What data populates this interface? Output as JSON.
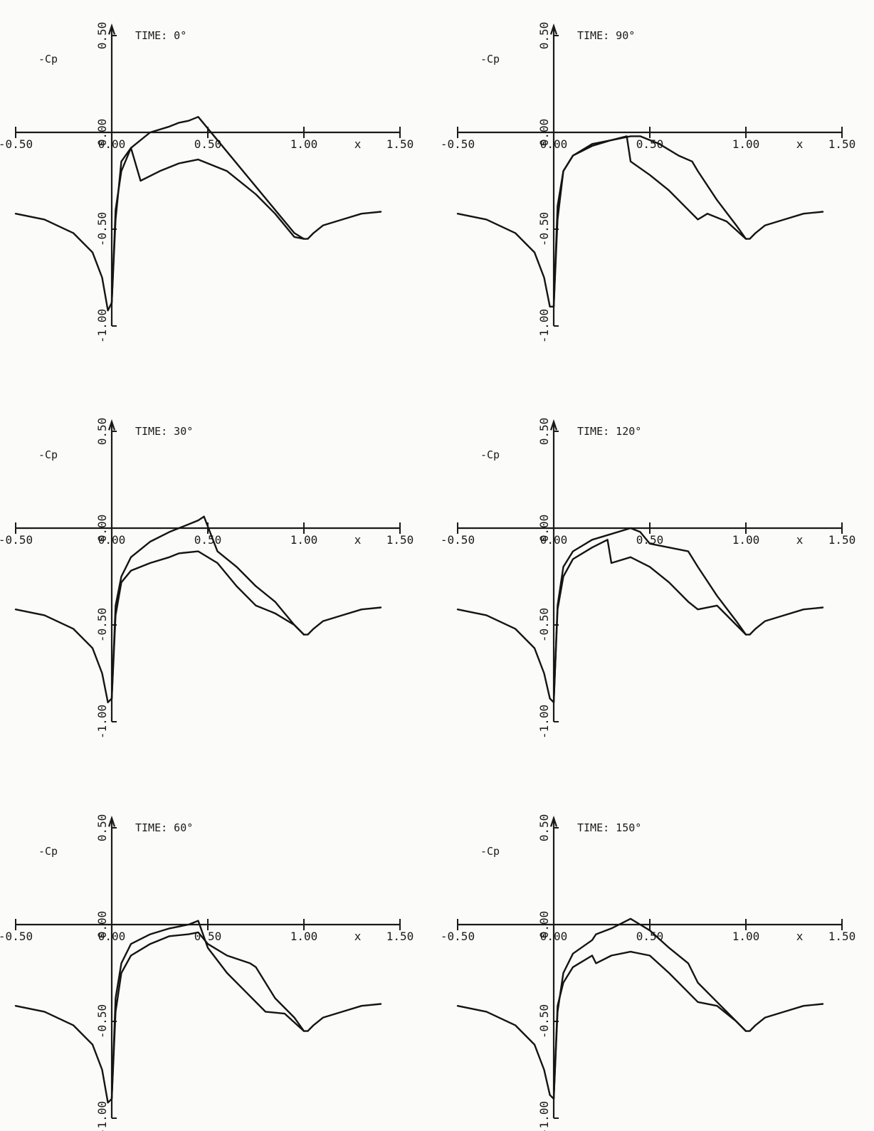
{
  "colors": {
    "background": "#fbfbf9",
    "ink": "#141414"
  },
  "chart_data": [
    {
      "type": "line",
      "title": "TIME: 0°",
      "ylabel": "-Cp",
      "xlabel": "x",
      "x_ticks": [
        "-0.50",
        "0.00",
        "0.50",
        "1.00",
        "1.50"
      ],
      "y_ticks": [
        "0.50",
        "0.00",
        "-0.50",
        "-1.00"
      ],
      "xlim": [
        -0.5,
        1.5
      ],
      "ylim": [
        -1.05,
        0.55
      ],
      "series": [
        {
          "x": [
            -0.5,
            -0.35,
            -0.2,
            -0.1,
            -0.05,
            -0.02,
            0.0,
            0.02,
            0.05,
            0.1,
            0.15,
            0.25,
            0.35,
            0.45,
            0.6,
            0.75,
            0.85,
            0.95,
            1.0,
            1.02,
            1.05,
            1.1,
            1.2,
            1.3,
            1.4
          ],
          "y": [
            -0.42,
            -0.45,
            -0.52,
            -0.62,
            -0.75,
            -0.92,
            -0.88,
            -0.45,
            -0.15,
            -0.08,
            -0.25,
            -0.2,
            -0.16,
            -0.14,
            -0.2,
            -0.32,
            -0.42,
            -0.54,
            -0.55,
            -0.55,
            -0.52,
            -0.48,
            -0.45,
            -0.42,
            -0.41
          ]
        },
        {
          "x": [
            0.0,
            0.02,
            0.05,
            0.1,
            0.2,
            0.3,
            0.35,
            0.4,
            0.45,
            0.6,
            0.75,
            0.85,
            0.95,
            1.0
          ],
          "y": [
            -0.88,
            -0.4,
            -0.2,
            -0.08,
            0.0,
            0.03,
            0.05,
            0.06,
            0.08,
            -0.1,
            -0.28,
            -0.4,
            -0.52,
            -0.55
          ]
        }
      ]
    },
    {
      "type": "line",
      "title": "TIME: 30°",
      "ylabel": "-Cp",
      "xlabel": "x",
      "x_ticks": [
        "-0.50",
        "0.00",
        "0.50",
        "1.00",
        "1.50"
      ],
      "y_ticks": [
        "0.50",
        "0.00",
        "-0.50",
        "-1.00"
      ],
      "xlim": [
        -0.5,
        1.5
      ],
      "ylim": [
        -1.05,
        0.55
      ],
      "series": [
        {
          "x": [
            -0.5,
            -0.35,
            -0.2,
            -0.1,
            -0.05,
            -0.02,
            0.0,
            0.02,
            0.05,
            0.1,
            0.2,
            0.3,
            0.35,
            0.45,
            0.55,
            0.65,
            0.75,
            0.85,
            0.95,
            1.0,
            1.02,
            1.05,
            1.1,
            1.2,
            1.3,
            1.4
          ],
          "y": [
            -0.42,
            -0.45,
            -0.52,
            -0.62,
            -0.75,
            -0.9,
            -0.88,
            -0.45,
            -0.28,
            -0.22,
            -0.18,
            -0.15,
            -0.13,
            -0.12,
            -0.18,
            -0.3,
            -0.4,
            -0.44,
            -0.5,
            -0.55,
            -0.55,
            -0.52,
            -0.48,
            -0.45,
            -0.42,
            -0.41
          ]
        },
        {
          "x": [
            0.0,
            0.02,
            0.05,
            0.1,
            0.2,
            0.3,
            0.4,
            0.45,
            0.48,
            0.55,
            0.65,
            0.75,
            0.85,
            0.95,
            1.0
          ],
          "y": [
            -0.88,
            -0.4,
            -0.25,
            -0.15,
            -0.07,
            -0.02,
            0.02,
            0.04,
            0.06,
            -0.12,
            -0.2,
            -0.3,
            -0.38,
            -0.5,
            -0.55
          ]
        }
      ]
    },
    {
      "type": "line",
      "title": "TIME: 60°",
      "ylabel": "-Cp",
      "xlabel": "x",
      "x_ticks": [
        "-0.50",
        "0.00",
        "0.50",
        "1.00",
        "1.50"
      ],
      "y_ticks": [
        "0.50",
        "0.00",
        "-0.50",
        "-1.00"
      ],
      "xlim": [
        -0.5,
        1.5
      ],
      "ylim": [
        -1.05,
        0.55
      ],
      "series": [
        {
          "x": [
            -0.5,
            -0.35,
            -0.2,
            -0.1,
            -0.05,
            -0.02,
            0.0,
            0.02,
            0.05,
            0.1,
            0.2,
            0.3,
            0.4,
            0.45,
            0.5,
            0.6,
            0.72,
            0.75,
            0.85,
            0.95,
            1.0,
            1.02,
            1.05,
            1.1,
            1.2,
            1.3,
            1.4
          ],
          "y": [
            -0.42,
            -0.45,
            -0.52,
            -0.62,
            -0.75,
            -0.92,
            -0.9,
            -0.45,
            -0.25,
            -0.16,
            -0.1,
            -0.06,
            -0.05,
            -0.04,
            -0.1,
            -0.16,
            -0.2,
            -0.22,
            -0.38,
            -0.48,
            -0.55,
            -0.55,
            -0.52,
            -0.48,
            -0.45,
            -0.42,
            -0.41
          ]
        },
        {
          "x": [
            0.0,
            0.02,
            0.05,
            0.1,
            0.2,
            0.3,
            0.4,
            0.45,
            0.5,
            0.6,
            0.7,
            0.8,
            0.9,
            1.0
          ],
          "y": [
            -0.9,
            -0.38,
            -0.2,
            -0.1,
            -0.05,
            -0.02,
            0.0,
            0.02,
            -0.12,
            -0.25,
            -0.35,
            -0.45,
            -0.46,
            -0.55
          ]
        }
      ]
    },
    {
      "type": "line",
      "title": "TIME: 90°",
      "ylabel": "-Cp",
      "xlabel": "x",
      "x_ticks": [
        "-0.50",
        "0.00",
        "0.50",
        "1.00",
        "1.50"
      ],
      "y_ticks": [
        "0.50",
        "0.00",
        "-0.50",
        "-1.00"
      ],
      "xlim": [
        -0.5,
        1.5
      ],
      "ylim": [
        -1.05,
        0.55
      ],
      "series": [
        {
          "x": [
            -0.5,
            -0.35,
            -0.2,
            -0.1,
            -0.05,
            -0.02,
            0.0,
            0.02,
            0.05,
            0.1,
            0.2,
            0.3,
            0.4,
            0.45,
            0.55,
            0.65,
            0.72,
            0.75,
            0.85,
            0.95,
            1.0,
            1.02,
            1.05,
            1.1,
            1.2,
            1.3,
            1.4
          ],
          "y": [
            -0.42,
            -0.45,
            -0.52,
            -0.62,
            -0.75,
            -0.9,
            -0.9,
            -0.45,
            -0.2,
            -0.12,
            -0.07,
            -0.04,
            -0.02,
            -0.02,
            -0.06,
            -0.12,
            -0.15,
            -0.2,
            -0.35,
            -0.48,
            -0.55,
            -0.55,
            -0.52,
            -0.48,
            -0.45,
            -0.42,
            -0.41
          ]
        },
        {
          "x": [
            0.0,
            0.02,
            0.05,
            0.1,
            0.2,
            0.3,
            0.38,
            0.4,
            0.5,
            0.6,
            0.7,
            0.75,
            0.8,
            0.9,
            1.0
          ],
          "y": [
            -0.9,
            -0.38,
            -0.2,
            -0.12,
            -0.06,
            -0.04,
            -0.02,
            -0.15,
            -0.22,
            -0.3,
            -0.4,
            -0.45,
            -0.42,
            -0.46,
            -0.55
          ]
        }
      ]
    },
    {
      "type": "line",
      "title": "TIME: 120°",
      "ylabel": "-Cp",
      "xlabel": "x",
      "x_ticks": [
        "-0.50",
        "0.00",
        "0.50",
        "1.00",
        "1.50"
      ],
      "y_ticks": [
        "0.50",
        "0.00",
        "-0.50",
        "-1.00"
      ],
      "xlim": [
        -0.5,
        1.5
      ],
      "ylim": [
        -1.05,
        0.55
      ],
      "series": [
        {
          "x": [
            -0.5,
            -0.35,
            -0.2,
            -0.1,
            -0.05,
            -0.02,
            0.0,
            0.02,
            0.05,
            0.1,
            0.2,
            0.28,
            0.3,
            0.4,
            0.5,
            0.6,
            0.7,
            0.75,
            0.85,
            0.95,
            1.0,
            1.02,
            1.05,
            1.1,
            1.2,
            1.3,
            1.4
          ],
          "y": [
            -0.42,
            -0.45,
            -0.52,
            -0.62,
            -0.75,
            -0.88,
            -0.9,
            -0.42,
            -0.25,
            -0.16,
            -0.1,
            -0.06,
            -0.18,
            -0.15,
            -0.2,
            -0.28,
            -0.38,
            -0.42,
            -0.4,
            -0.5,
            -0.55,
            -0.55,
            -0.52,
            -0.48,
            -0.45,
            -0.42,
            -0.41
          ]
        },
        {
          "x": [
            0.0,
            0.02,
            0.05,
            0.1,
            0.2,
            0.3,
            0.4,
            0.45,
            0.5,
            0.6,
            0.7,
            0.75,
            0.85,
            0.95,
            1.0
          ],
          "y": [
            -0.9,
            -0.4,
            -0.2,
            -0.12,
            -0.06,
            -0.03,
            0.0,
            -0.02,
            -0.08,
            -0.1,
            -0.12,
            -0.2,
            -0.35,
            -0.48,
            -0.55
          ]
        }
      ]
    },
    {
      "type": "line",
      "title": "TIME: 150°",
      "ylabel": "-Cp",
      "xlabel": "x",
      "x_ticks": [
        "-0.50",
        "0.00",
        "0.50",
        "1.00",
        "1.50"
      ],
      "y_ticks": [
        "0.50",
        "0.00",
        "-0.50",
        "-1.00"
      ],
      "xlim": [
        -0.5,
        1.5
      ],
      "ylim": [
        -1.05,
        0.55
      ],
      "series": [
        {
          "x": [
            -0.5,
            -0.35,
            -0.2,
            -0.1,
            -0.05,
            -0.02,
            0.0,
            0.02,
            0.05,
            0.1,
            0.2,
            0.22,
            0.3,
            0.4,
            0.5,
            0.6,
            0.7,
            0.75,
            0.85,
            0.95,
            1.0,
            1.02,
            1.05,
            1.1,
            1.2,
            1.3,
            1.4
          ],
          "y": [
            -0.42,
            -0.45,
            -0.52,
            -0.62,
            -0.75,
            -0.88,
            -0.9,
            -0.42,
            -0.3,
            -0.22,
            -0.16,
            -0.2,
            -0.16,
            -0.14,
            -0.16,
            -0.25,
            -0.35,
            -0.4,
            -0.42,
            -0.5,
            -0.55,
            -0.55,
            -0.52,
            -0.48,
            -0.45,
            -0.42,
            -0.41
          ]
        },
        {
          "x": [
            0.0,
            0.02,
            0.05,
            0.1,
            0.2,
            0.22,
            0.3,
            0.4,
            0.45,
            0.5,
            0.6,
            0.7,
            0.75,
            0.85,
            0.95,
            1.0
          ],
          "y": [
            -0.9,
            -0.45,
            -0.25,
            -0.15,
            -0.08,
            -0.05,
            -0.02,
            0.03,
            0.0,
            -0.03,
            -0.12,
            -0.2,
            -0.3,
            -0.4,
            -0.5,
            -0.55
          ]
        }
      ]
    }
  ]
}
